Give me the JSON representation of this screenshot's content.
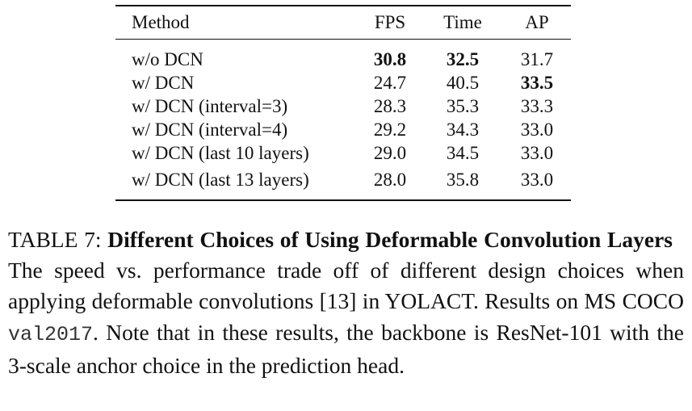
{
  "table": {
    "header": [
      "Method",
      "FPS",
      "Time",
      "AP"
    ],
    "rows": [
      [
        "w/o DCN",
        "30.8",
        "32.5",
        "31.7"
      ],
      [
        "w/ DCN",
        "24.7",
        "40.5",
        "33.5"
      ],
      [
        "w/ DCN (interval=3)",
        "28.3",
        "35.3",
        "33.3"
      ],
      [
        "w/ DCN (interval=4)",
        "29.2",
        "34.3",
        "33.0"
      ],
      [
        "w/ DCN (last 10 layers)",
        "29.0",
        "34.5",
        "33.0"
      ],
      [
        "w/ DCN (last 13 layers)",
        "28.0",
        "35.8",
        "33.0"
      ]
    ],
    "bold": [
      [
        0,
        1
      ],
      [
        0,
        2
      ],
      [
        1,
        3
      ]
    ]
  },
  "caption": {
    "label": "TABLE 7:",
    "title": "Different Choices of Using Deformable Convolution Layers",
    "text_before": "The speed vs. performance trade off of different design choices when applying deformable convolutions [13] in YOLACT. Results on MS COCO ",
    "code": "val2017",
    "text_after": ". Note that in these results, the backbone is ResNet-101 with the 3-scale anchor choice in the prediction head."
  }
}
